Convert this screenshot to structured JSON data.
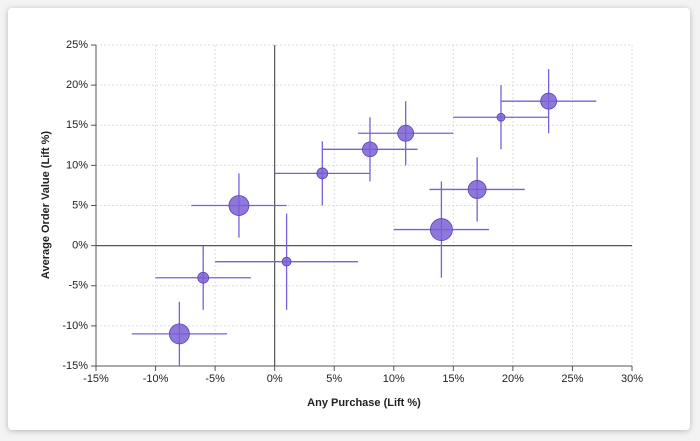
{
  "chart_data": {
    "type": "scatter",
    "x_label": "Any Purchase (Lift %)",
    "y_label": "Average Order Value (Lift %)",
    "color": "#7b5fd6",
    "grid": true,
    "xlim": [
      -15,
      30
    ],
    "ylim": [
      -15,
      25
    ],
    "xticks": [
      {
        "value": -15,
        "label": "-15%"
      },
      {
        "value": -10,
        "label": "-10%"
      },
      {
        "value": -5,
        "label": "-5%"
      },
      {
        "value": 0,
        "label": "0%"
      },
      {
        "value": 5,
        "label": "5%"
      },
      {
        "value": 10,
        "label": "10%"
      },
      {
        "value": 15,
        "label": "15%"
      },
      {
        "value": 20,
        "label": "20%"
      },
      {
        "value": 25,
        "label": "25%"
      },
      {
        "value": 30,
        "label": "30%"
      }
    ],
    "yticks": [
      {
        "value": -15,
        "label": "-15%"
      },
      {
        "value": -10,
        "label": "-10%"
      },
      {
        "value": -5,
        "label": "-5%"
      },
      {
        "value": 0,
        "label": "0%"
      },
      {
        "value": 5,
        "label": "5%"
      },
      {
        "value": 10,
        "label": "10%"
      },
      {
        "value": 15,
        "label": "15%"
      },
      {
        "value": 20,
        "label": "20%"
      },
      {
        "value": 25,
        "label": "25%"
      }
    ],
    "points": [
      {
        "x": -8,
        "y": -11,
        "x_err": 4,
        "y_err": 4,
        "size": 100
      },
      {
        "x": -6,
        "y": -4,
        "x_err": 4,
        "y_err": 4,
        "size": 30
      },
      {
        "x": -3,
        "y": 5,
        "x_err": 4,
        "y_err": 4,
        "size": 100
      },
      {
        "x": 1,
        "y": -2,
        "x_err": 6,
        "y_err": 6,
        "size": 20
      },
      {
        "x": 4,
        "y": 9,
        "x_err": 4,
        "y_err": 4,
        "size": 30
      },
      {
        "x": 8,
        "y": 12,
        "x_err": 4,
        "y_err": 4,
        "size": 56
      },
      {
        "x": 11,
        "y": 14,
        "x_err": 4,
        "y_err": 4,
        "size": 64
      },
      {
        "x": 14,
        "y": 2,
        "x_err": 4,
        "y_err": 6,
        "size": 121
      },
      {
        "x": 17,
        "y": 7,
        "x_err": 4,
        "y_err": 4,
        "size": 81
      },
      {
        "x": 19,
        "y": 16,
        "x_err": 4,
        "y_err": 4,
        "size": 16
      },
      {
        "x": 23,
        "y": 18,
        "x_err": 4,
        "y_err": 4,
        "size": 64
      }
    ]
  }
}
